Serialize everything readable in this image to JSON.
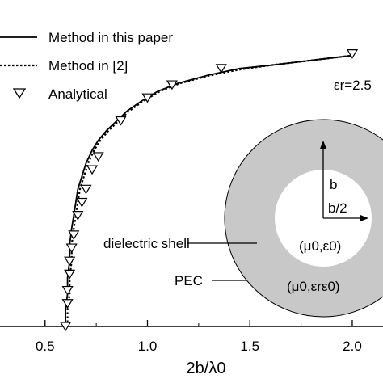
{
  "chart_data": {
    "type": "line",
    "xlabel": "2b/λ0",
    "x_range": [
      0.28,
      2.15
    ],
    "y_range": [
      0,
      1
    ],
    "x_ticks": [
      {
        "value": 0.5,
        "label": "0.5"
      },
      {
        "value": 1.0,
        "label": "1.0"
      },
      {
        "value": 1.5,
        "label": "1.5"
      },
      {
        "value": 2.0,
        "label": "2.0"
      }
    ],
    "legend_position": "top-left",
    "series": [
      {
        "name": "Method in this paper",
        "style": "solid",
        "x": [
          0.6,
          0.6,
          0.61,
          0.61,
          0.62,
          0.62,
          0.63,
          0.64,
          0.65,
          0.66,
          0.68,
          0.7,
          0.73,
          0.76,
          0.8,
          0.85,
          0.9,
          0.97,
          1.05,
          1.15,
          1.3,
          1.45,
          1.6,
          1.8,
          2.0
        ],
        "y": [
          0.0,
          0.05,
          0.1,
          0.15,
          0.2,
          0.25,
          0.3,
          0.34,
          0.38,
          0.42,
          0.46,
          0.5,
          0.54,
          0.57,
          0.6,
          0.63,
          0.66,
          0.69,
          0.72,
          0.745,
          0.77,
          0.79,
          0.8,
          0.815,
          0.83
        ]
      },
      {
        "name": "Method in [2]",
        "style": "dotted",
        "x": [
          0.61,
          0.61,
          0.62,
          0.62,
          0.63,
          0.63,
          0.64,
          0.65,
          0.66,
          0.67,
          0.69,
          0.71,
          0.74,
          0.77,
          0.81,
          0.86,
          0.91,
          0.98,
          1.06,
          1.16,
          1.3,
          1.45,
          1.6,
          1.8,
          2.0
        ],
        "y": [
          0.0,
          0.05,
          0.1,
          0.15,
          0.2,
          0.25,
          0.3,
          0.34,
          0.38,
          0.42,
          0.46,
          0.5,
          0.54,
          0.57,
          0.6,
          0.63,
          0.66,
          0.69,
          0.72,
          0.745,
          0.768,
          0.787,
          0.8,
          0.815,
          0.83
        ]
      },
      {
        "name": "Analytical",
        "style": "markers",
        "marker": "triangle-down",
        "x": [
          0.6,
          0.61,
          0.61,
          0.62,
          0.62,
          0.63,
          0.64,
          0.66,
          0.68,
          0.7,
          0.73,
          0.76,
          0.87,
          1.0,
          1.12,
          1.36,
          2.0
        ],
        "y": [
          0.0,
          0.07,
          0.11,
          0.16,
          0.2,
          0.24,
          0.28,
          0.34,
          0.38,
          0.42,
          0.48,
          0.52,
          0.63,
          0.7,
          0.74,
          0.79,
          0.835
        ]
      }
    ],
    "annotations": {
      "er_label": "εr=2.5",
      "dielectric_shell": "dielectric shell",
      "pec": "PEC",
      "b": "b",
      "b_half": "b/2",
      "inner_medium": "(μ0,ε0)",
      "shell_medium": "(μ0,εrε0)"
    },
    "colors": {
      "shell": "#c8c8c8",
      "line": "#000000",
      "background": "#ffffff"
    }
  }
}
